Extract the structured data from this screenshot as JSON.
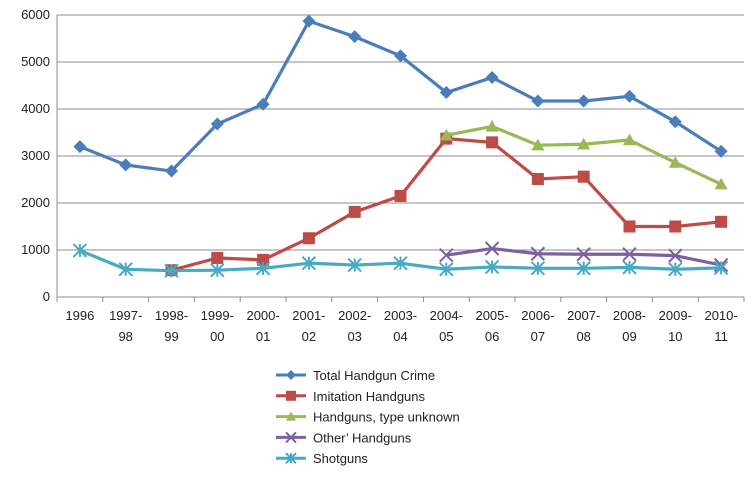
{
  "chart_data": {
    "type": "line",
    "title": "",
    "xlabel": "",
    "ylabel": "",
    "ylim": [
      0,
      6000
    ],
    "yticks": [
      0,
      1000,
      2000,
      3000,
      4000,
      5000,
      6000
    ],
    "grid": "horizontal",
    "legend_position": "bottom",
    "categories": [
      "1996",
      "1997-98",
      "1998-99",
      "1999-00",
      "2000-01",
      "2001-02",
      "2002-03",
      "2003-04",
      "2004-05",
      "2005-06",
      "2006-07",
      "2007-08",
      "2008-09",
      "2009-10",
      "2010-11"
    ],
    "category_label_lines": [
      [
        "1996",
        ""
      ],
      [
        "1997-",
        "98"
      ],
      [
        "1998-",
        "99"
      ],
      [
        "1999-",
        "00"
      ],
      [
        "2000-",
        "01"
      ],
      [
        "2001-",
        "02"
      ],
      [
        "2002-",
        "03"
      ],
      [
        "2003-",
        "04"
      ],
      [
        "2004-",
        "05"
      ],
      [
        "2005-",
        "06"
      ],
      [
        "2006-",
        "07"
      ],
      [
        "2007-",
        "08"
      ],
      [
        "2008-",
        "09"
      ],
      [
        "2009-",
        "10"
      ],
      [
        "2010-",
        "11"
      ]
    ],
    "series": [
      {
        "name": "Total Handgun Crime",
        "color": "#4a7ebb",
        "marker": "diamond",
        "values": [
          3200,
          2810,
          2680,
          3680,
          4100,
          5870,
          5540,
          5130,
          4350,
          4670,
          4170,
          4170,
          4270,
          3730,
          3100
        ]
      },
      {
        "name": "Imitation Handguns",
        "color": "#be4b48",
        "marker": "square",
        "values": [
          null,
          null,
          570,
          830,
          790,
          1250,
          1810,
          2150,
          3370,
          3290,
          2510,
          2560,
          1500,
          1500,
          1600
        ]
      },
      {
        "name": "Handguns, type unknown",
        "color": "#98b954",
        "marker": "triangle",
        "values": [
          null,
          null,
          null,
          null,
          null,
          null,
          null,
          null,
          3440,
          3630,
          3230,
          3250,
          3340,
          2860,
          2400
        ]
      },
      {
        "name": "Other’ Handguns",
        "color": "#7d60a0",
        "marker": "x",
        "values": [
          null,
          null,
          null,
          null,
          null,
          null,
          null,
          null,
          890,
          1030,
          920,
          910,
          910,
          880,
          680
        ]
      },
      {
        "name": "Shotguns",
        "color": "#46aac5",
        "marker": "star",
        "values": [
          990,
          590,
          560,
          570,
          610,
          720,
          680,
          720,
          590,
          640,
          610,
          610,
          630,
          590,
          620
        ]
      }
    ]
  }
}
